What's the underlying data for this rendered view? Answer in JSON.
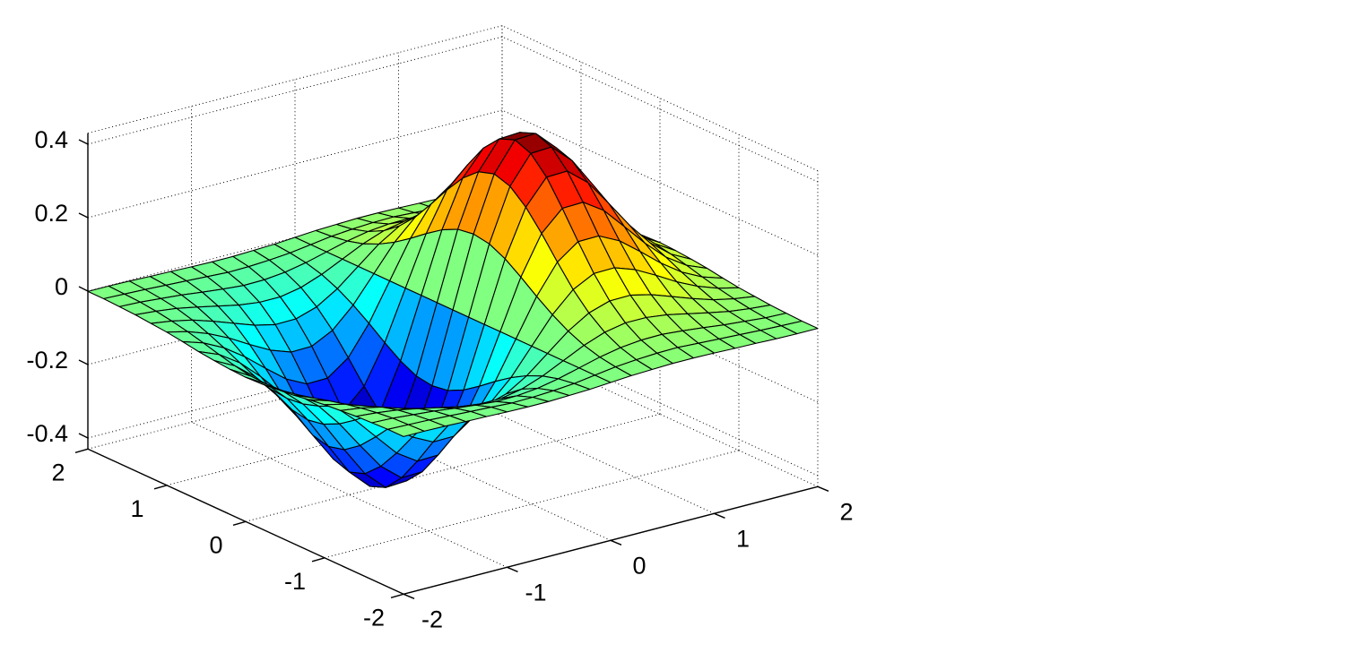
{
  "chart_data": {
    "type": "surface",
    "title": "",
    "xlabel": "",
    "ylabel": "",
    "zlabel": "",
    "colormap": "jet",
    "edge_color": "#000000",
    "grid": true,
    "xlim": [
      -2,
      2
    ],
    "ylim": [
      -2,
      2
    ],
    "zlim": [
      -0.43,
      0.43
    ],
    "x_ticks": [
      "-2",
      "-1",
      "0",
      "1",
      "2"
    ],
    "y_ticks": [
      "-2",
      "-1",
      "0",
      "1",
      "2"
    ],
    "z_ticks": [
      "-0.4",
      "-0.2",
      "0",
      "0.2",
      "0.4"
    ],
    "x": [
      -2,
      -1.8,
      -1.6,
      -1.4,
      -1.2,
      -1,
      -0.8,
      -0.6,
      -0.4,
      -0.2,
      0,
      0.2,
      0.4,
      0.6,
      0.8,
      1,
      1.2,
      1.4,
      1.6,
      1.8,
      2
    ],
    "y": [
      -2,
      -1.8,
      -1.6,
      -1.4,
      -1.2,
      -1,
      -0.8,
      -0.6,
      -0.4,
      -0.2,
      0,
      0.2,
      0.4,
      0.6,
      0.8,
      1,
      1.2,
      1.4,
      1.6,
      1.8,
      2
    ],
    "z": [
      [
        -0.001,
        -0.001,
        -0.002,
        -0.004,
        -0.005,
        -0.007,
        -0.008,
        -0.008,
        -0.006,
        -0.004,
        0,
        0.004,
        0.006,
        0.008,
        0.008,
        0.007,
        0.005,
        0.004,
        0.002,
        0.001,
        0.001
      ],
      [
        -0.001,
        -0.003,
        -0.005,
        -0.008,
        -0.011,
        -0.014,
        -0.017,
        -0.016,
        -0.013,
        -0.008,
        0,
        0.008,
        0.013,
        0.016,
        0.017,
        0.014,
        0.011,
        0.008,
        0.005,
        0.003,
        0.001
      ],
      [
        -0.003,
        -0.005,
        -0.01,
        -0.015,
        -0.022,
        -0.028,
        -0.033,
        -0.032,
        -0.026,
        -0.015,
        0,
        0.015,
        0.026,
        0.032,
        0.033,
        0.028,
        0.022,
        0.015,
        0.01,
        0.005,
        0.003
      ],
      [
        -0.005,
        -0.01,
        -0.017,
        -0.028,
        -0.04,
        -0.052,
        -0.059,
        -0.059,
        -0.048,
        -0.027,
        0,
        0.027,
        0.048,
        0.059,
        0.059,
        0.052,
        0.04,
        0.028,
        0.017,
        0.01,
        0.005
      ],
      [
        -0.009,
        -0.017,
        -0.029,
        -0.047,
        -0.067,
        -0.087,
        -0.1,
        -0.099,
        -0.081,
        -0.046,
        0,
        0.046,
        0.081,
        0.099,
        0.1,
        0.087,
        0.067,
        0.047,
        0.029,
        0.017,
        0.009
      ],
      [
        -0.013,
        -0.026,
        -0.046,
        -0.073,
        -0.105,
        -0.135,
        -0.155,
        -0.154,
        -0.125,
        -0.071,
        0,
        0.071,
        0.125,
        0.154,
        0.155,
        0.135,
        0.105,
        0.073,
        0.046,
        0.026,
        0.013
      ],
      [
        -0.019,
        -0.037,
        -0.065,
        -0.104,
        -0.15,
        -0.194,
        -0.222,
        -0.221,
        -0.18,
        -0.101,
        0,
        0.101,
        0.18,
        0.221,
        0.222,
        0.194,
        0.15,
        0.104,
        0.065,
        0.037,
        0.019
      ],
      [
        -0.026,
        -0.049,
        -0.086,
        -0.138,
        -0.198,
        -0.257,
        -0.294,
        -0.292,
        -0.238,
        -0.134,
        0,
        0.134,
        0.238,
        0.292,
        0.294,
        0.257,
        0.198,
        0.138,
        0.086,
        0.049,
        0.026
      ],
      [
        -0.031,
        -0.06,
        -0.105,
        -0.168,
        -0.242,
        -0.313,
        -0.359,
        -0.357,
        -0.29,
        -0.164,
        0,
        0.164,
        0.29,
        0.357,
        0.359,
        0.313,
        0.242,
        0.168,
        0.105,
        0.06,
        0.031
      ],
      [
        -0.035,
        -0.068,
        -0.119,
        -0.189,
        -0.273,
        -0.353,
        -0.405,
        -0.402,
        -0.327,
        -0.185,
        0,
        0.185,
        0.327,
        0.402,
        0.405,
        0.353,
        0.273,
        0.189,
        0.119,
        0.068,
        0.035
      ],
      [
        -0.037,
        -0.07,
        -0.124,
        -0.197,
        -0.284,
        -0.368,
        -0.422,
        -0.419,
        -0.341,
        -0.192,
        0,
        0.192,
        0.341,
        0.419,
        0.422,
        0.368,
        0.284,
        0.197,
        0.124,
        0.07,
        0.037
      ],
      [
        -0.035,
        -0.068,
        -0.119,
        -0.189,
        -0.273,
        -0.353,
        -0.405,
        -0.402,
        -0.327,
        -0.185,
        0,
        0.185,
        0.327,
        0.402,
        0.405,
        0.353,
        0.273,
        0.189,
        0.119,
        0.068,
        0.035
      ],
      [
        -0.031,
        -0.06,
        -0.105,
        -0.168,
        -0.242,
        -0.313,
        -0.359,
        -0.357,
        -0.29,
        -0.164,
        0,
        0.164,
        0.29,
        0.357,
        0.359,
        0.313,
        0.242,
        0.168,
        0.105,
        0.06,
        0.031
      ],
      [
        -0.026,
        -0.049,
        -0.086,
        -0.138,
        -0.198,
        -0.257,
        -0.294,
        -0.292,
        -0.238,
        -0.134,
        0,
        0.134,
        0.238,
        0.292,
        0.294,
        0.257,
        0.198,
        0.138,
        0.086,
        0.049,
        0.026
      ],
      [
        -0.019,
        -0.037,
        -0.065,
        -0.104,
        -0.15,
        -0.194,
        -0.222,
        -0.221,
        -0.18,
        -0.101,
        0,
        0.101,
        0.18,
        0.221,
        0.222,
        0.194,
        0.15,
        0.104,
        0.065,
        0.037,
        0.019
      ],
      [
        -0.013,
        -0.026,
        -0.046,
        -0.073,
        -0.105,
        -0.135,
        -0.155,
        -0.154,
        -0.125,
        -0.071,
        0,
        0.071,
        0.125,
        0.154,
        0.155,
        0.135,
        0.105,
        0.073,
        0.046,
        0.026,
        0.013
      ],
      [
        -0.009,
        -0.017,
        -0.029,
        -0.047,
        -0.067,
        -0.087,
        -0.1,
        -0.099,
        -0.081,
        -0.046,
        0,
        0.046,
        0.081,
        0.099,
        0.1,
        0.087,
        0.067,
        0.047,
        0.029,
        0.017,
        0.009
      ],
      [
        -0.005,
        -0.01,
        -0.017,
        -0.028,
        -0.04,
        -0.052,
        -0.059,
        -0.059,
        -0.048,
        -0.027,
        0,
        0.027,
        0.048,
        0.059,
        0.059,
        0.052,
        0.04,
        0.028,
        0.017,
        0.01,
        0.005
      ],
      [
        -0.003,
        -0.005,
        -0.01,
        -0.015,
        -0.022,
        -0.028,
        -0.033,
        -0.032,
        -0.026,
        -0.015,
        0,
        0.015,
        0.026,
        0.032,
        0.033,
        0.028,
        0.022,
        0.015,
        0.01,
        0.005,
        0.003
      ],
      [
        -0.001,
        -0.003,
        -0.005,
        -0.008,
        -0.011,
        -0.014,
        -0.017,
        -0.016,
        -0.013,
        -0.008,
        0,
        0.008,
        0.013,
        0.016,
        0.017,
        0.014,
        0.011,
        0.008,
        0.005,
        0.003,
        0.001
      ],
      [
        -0.001,
        -0.001,
        -0.002,
        -0.004,
        -0.005,
        -0.007,
        -0.008,
        -0.008,
        -0.006,
        -0.004,
        0,
        0.004,
        0.006,
        0.008,
        0.008,
        0.007,
        0.005,
        0.004,
        0.002,
        0.001,
        0.001
      ]
    ]
  }
}
